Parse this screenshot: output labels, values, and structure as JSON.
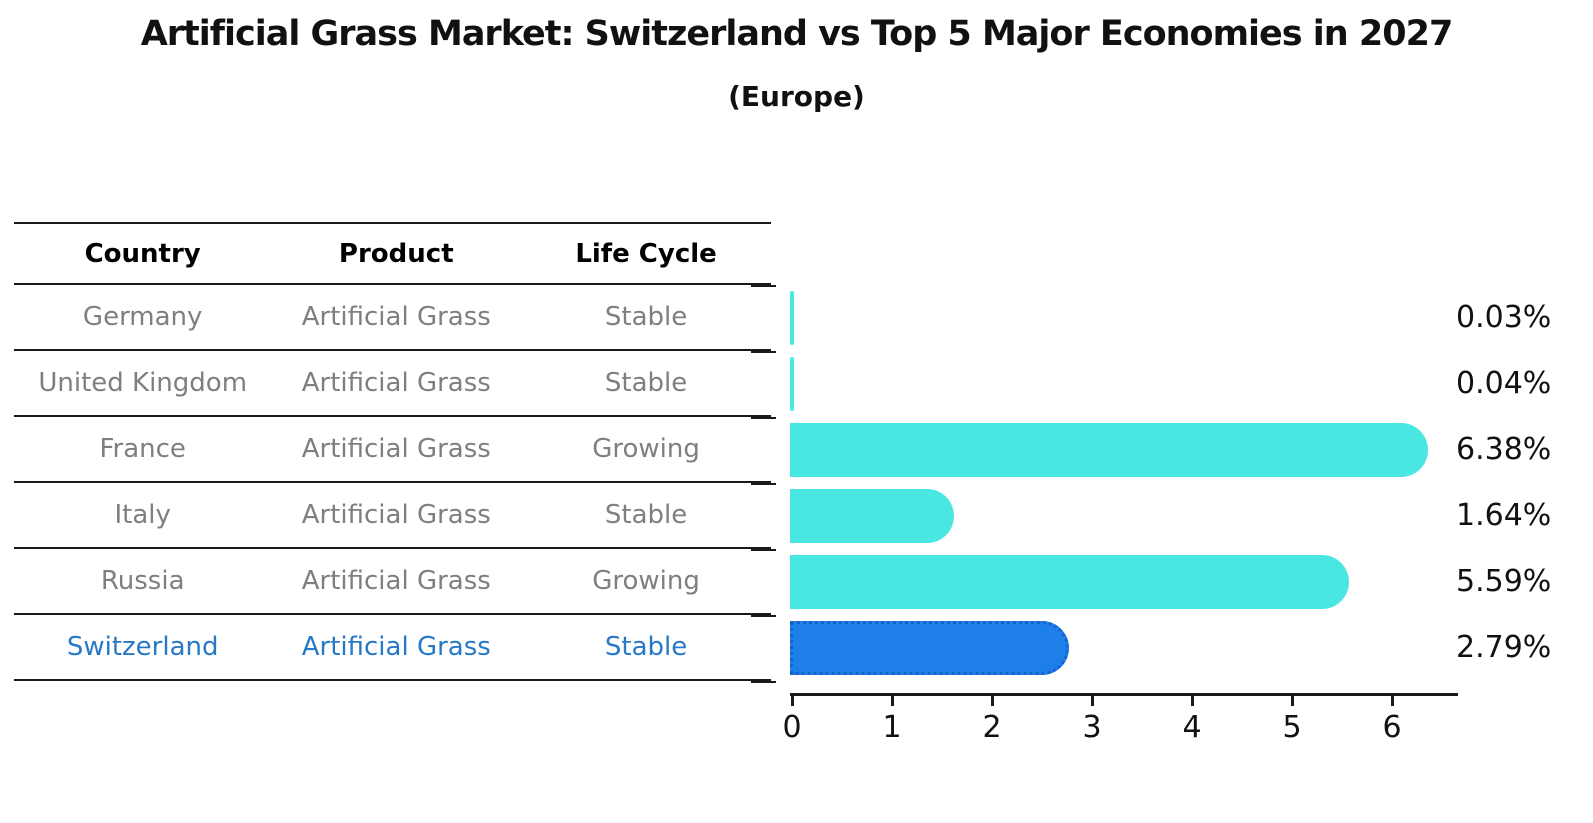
{
  "header": {
    "title": "Artificial Grass Market: Switzerland vs Top 5 Major Economies in 2027",
    "subtitle": "(Europe)"
  },
  "table": {
    "headers": [
      "Country",
      "Product",
      "Life Cycle"
    ],
    "rows": [
      {
        "country": "Germany",
        "product": "Artificial Grass",
        "life_cycle": "Stable",
        "highlight": false
      },
      {
        "country": "United Kingdom",
        "product": "Artificial Grass",
        "life_cycle": "Stable",
        "highlight": false
      },
      {
        "country": "France",
        "product": "Artificial Grass",
        "life_cycle": "Growing",
        "highlight": false
      },
      {
        "country": "Italy",
        "product": "Artificial Grass",
        "life_cycle": "Stable",
        "highlight": false
      },
      {
        "country": "Russia",
        "product": "Artificial Grass",
        "life_cycle": "Growing",
        "highlight": false
      },
      {
        "country": "Switzerland",
        "product": "Artificial Grass",
        "life_cycle": "Stable",
        "highlight": true
      }
    ]
  },
  "chart_data": {
    "type": "bar",
    "orientation": "horizontal",
    "title": "Artificial Grass Market: Switzerland vs Top 5 Major Economies in 2027 (Europe)",
    "categories": [
      "Germany",
      "United Kingdom",
      "France",
      "Italy",
      "Russia",
      "Switzerland"
    ],
    "values": [
      0.03,
      0.04,
      6.38,
      1.64,
      5.59,
      2.79
    ],
    "value_labels": [
      "0.03%",
      "0.04%",
      "6.38%",
      "1.64%",
      "5.59%",
      "2.79%"
    ],
    "highlight_index": 5,
    "x_ticks": [
      "0",
      "1",
      "2",
      "3",
      "4",
      "5",
      "6"
    ],
    "xlim": [
      0,
      6.68
    ],
    "xlabel": "",
    "ylabel": "",
    "grid": false,
    "legend": "none"
  },
  "colors": {
    "bar_default": "#4AE6E2",
    "bar_highlight": "#1E7EEA",
    "bar_highlight_border": "#1563CF",
    "table_text": "#7f7f7f",
    "table_text_highlight": "#2878C8",
    "axis": "#1a1a1a",
    "label_text": "#111111"
  }
}
